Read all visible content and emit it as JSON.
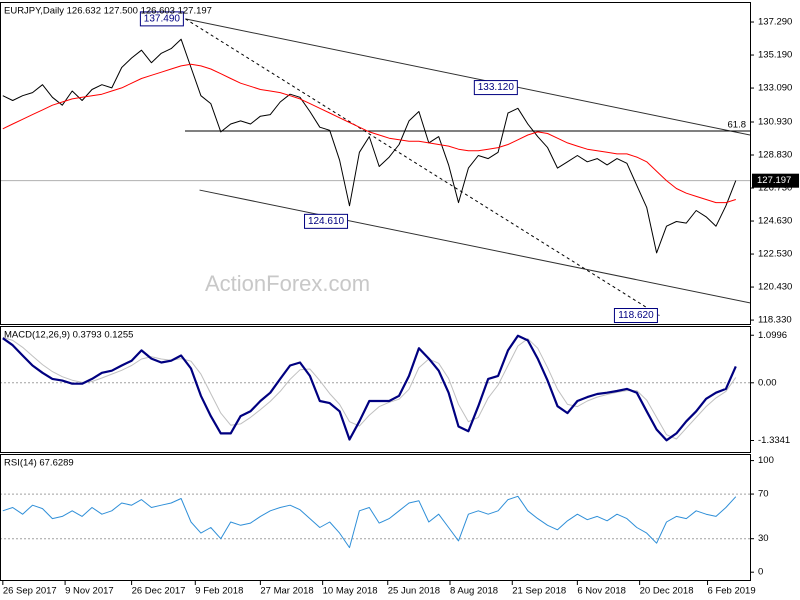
{
  "chart_data": [
    {
      "type": "line",
      "title": "EURJPY,Daily  126.632 127.500 126.603 127.197",
      "watermark": "ActionForex.com",
      "x": [
        "2017-09-26",
        "2017-10-03",
        "2017-10-10",
        "2017-10-17",
        "2017-10-24",
        "2017-10-31",
        "2017-11-07",
        "2017-11-14",
        "2017-11-21",
        "2017-11-28",
        "2017-12-05",
        "2017-12-12",
        "2017-12-19",
        "2017-12-26",
        "2018-01-02",
        "2018-01-09",
        "2018-01-16",
        "2018-01-23",
        "2018-01-30",
        "2018-02-06",
        "2018-02-13",
        "2018-02-20",
        "2018-02-27",
        "2018-03-06",
        "2018-03-13",
        "2018-03-20",
        "2018-03-27",
        "2018-04-03",
        "2018-04-10",
        "2018-04-17",
        "2018-04-24",
        "2018-05-01",
        "2018-05-08",
        "2018-05-15",
        "2018-05-22",
        "2018-05-29",
        "2018-06-05",
        "2018-06-12",
        "2018-06-19",
        "2018-06-26",
        "2018-07-03",
        "2018-07-10",
        "2018-07-17",
        "2018-07-24",
        "2018-07-31",
        "2018-08-07",
        "2018-08-14",
        "2018-08-21",
        "2018-08-28",
        "2018-09-04",
        "2018-09-11",
        "2018-09-18",
        "2018-09-25",
        "2018-10-02",
        "2018-10-09",
        "2018-10-16",
        "2018-10-23",
        "2018-10-30",
        "2018-11-06",
        "2018-11-13",
        "2018-11-20",
        "2018-11-27",
        "2018-12-04",
        "2018-12-11",
        "2018-12-18",
        "2018-12-25",
        "2019-01-01",
        "2019-01-08",
        "2019-01-15",
        "2019-01-22",
        "2019-01-29",
        "2019-02-05",
        "2019-02-12",
        "2019-02-19",
        "2019-02-26"
      ],
      "series": [
        {
          "color": "#000000",
          "width": 1,
          "values": [
            132.6,
            132.3,
            132.6,
            132.8,
            133.3,
            132.5,
            132.0,
            132.9,
            132.3,
            133.0,
            133.3,
            133.1,
            134.4,
            135.0,
            135.5,
            134.7,
            135.3,
            135.6,
            136.2,
            134.4,
            132.6,
            132.1,
            130.3,
            130.8,
            131.0,
            130.8,
            131.3,
            131.4,
            132.2,
            132.7,
            132.5,
            131.6,
            130.6,
            130.4,
            128.5,
            125.6,
            129.0,
            130.0,
            128.1,
            128.7,
            129.5,
            131.0,
            131.6,
            129.6,
            130.0,
            128.2,
            125.8,
            128.0,
            128.8,
            128.6,
            129.0,
            131.5,
            131.8,
            130.8,
            130.0,
            129.3,
            128.0,
            128.4,
            128.8,
            128.4,
            128.6,
            128.2,
            128.6,
            128.3,
            126.9,
            125.5,
            122.6,
            124.3,
            124.6,
            124.5,
            125.3,
            124.9,
            124.3,
            125.6,
            127.2
          ]
        },
        {
          "color": "#ff0000",
          "width": 1,
          "values": [
            130.5,
            130.8,
            131.1,
            131.4,
            131.7,
            132.0,
            132.2,
            132.4,
            132.5,
            132.6,
            132.7,
            132.9,
            133.1,
            133.4,
            133.7,
            133.9,
            134.1,
            134.3,
            134.5,
            134.6,
            134.5,
            134.3,
            134.0,
            133.7,
            133.4,
            133.2,
            133.0,
            132.9,
            132.8,
            132.6,
            132.4,
            132.1,
            131.8,
            131.5,
            131.2,
            130.9,
            130.6,
            130.3,
            130.1,
            129.9,
            129.8,
            129.7,
            129.7,
            129.6,
            129.5,
            129.4,
            129.2,
            129.1,
            129.1,
            129.2,
            129.3,
            129.5,
            129.8,
            130.1,
            130.3,
            130.2,
            129.9,
            129.6,
            129.4,
            129.2,
            129.1,
            129.0,
            128.9,
            128.9,
            128.7,
            128.4,
            127.8,
            127.2,
            126.7,
            126.4,
            126.2,
            126.0,
            125.8,
            125.8,
            126.0
          ]
        }
      ],
      "xlim": [
        "2017-09-24",
        "2019-03-08"
      ],
      "ylim": [
        118.08,
        138.5
      ],
      "yticks": [
        {
          "value": 137.29,
          "label": "137.290"
        },
        {
          "value": 135.19,
          "label": "135.190"
        },
        {
          "value": 133.09,
          "label": "133.090"
        },
        {
          "value": 130.93,
          "label": "130.930"
        },
        {
          "value": 128.83,
          "label": "128.830"
        },
        {
          "value": 126.73,
          "label": "126.730"
        },
        {
          "value": 124.63,
          "label": "124.630"
        },
        {
          "value": 122.53,
          "label": "122.530"
        },
        {
          "value": 120.43,
          "label": "120.430"
        },
        {
          "value": 118.33,
          "label": "118.330"
        }
      ],
      "annotations": [
        {
          "x": "2018-02-02",
          "value": 137.49,
          "label": "137.490"
        },
        {
          "x": "2018-09-26",
          "value": 133.12,
          "label": "133.120"
        },
        {
          "x": "2018-05-29",
          "value": 124.61,
          "label": "124.610"
        },
        {
          "x": "2019-01-03",
          "value": 118.62,
          "label": "118.620"
        }
      ],
      "trendlines": [
        {
          "x": [
            "2018-02-02",
            "2019-03-08"
          ],
          "values": [
            137.49,
            130.1
          ],
          "color": "#303030",
          "dashed": false
        },
        {
          "x": [
            "2018-02-12",
            "2019-03-08"
          ],
          "values": [
            126.6,
            119.42
          ],
          "color": "#303030",
          "dashed": false
        },
        {
          "x": [
            "2018-02-02",
            "2019-01-03"
          ],
          "values": [
            137.49,
            118.62
          ],
          "color": "#000000",
          "dashed": true
        }
      ],
      "fibo": {
        "value": 130.36,
        "label": "61.8"
      },
      "last_price": 127.197
    },
    {
      "type": "line",
      "title": "MACD(12,26,9) 0.3793 0.1255",
      "x": [
        "2017-09-26",
        "2017-10-03",
        "2017-10-10",
        "2017-10-17",
        "2017-10-24",
        "2017-10-31",
        "2017-11-07",
        "2017-11-14",
        "2017-11-21",
        "2017-11-28",
        "2017-12-05",
        "2017-12-12",
        "2017-12-19",
        "2017-12-26",
        "2018-01-02",
        "2018-01-09",
        "2018-01-16",
        "2018-01-23",
        "2018-01-30",
        "2018-02-06",
        "2018-02-13",
        "2018-02-20",
        "2018-02-27",
        "2018-03-06",
        "2018-03-13",
        "2018-03-20",
        "2018-03-27",
        "2018-04-03",
        "2018-04-10",
        "2018-04-17",
        "2018-04-24",
        "2018-05-01",
        "2018-05-08",
        "2018-05-15",
        "2018-05-22",
        "2018-05-29",
        "2018-06-05",
        "2018-06-12",
        "2018-06-19",
        "2018-06-26",
        "2018-07-03",
        "2018-07-10",
        "2018-07-17",
        "2018-07-24",
        "2018-07-31",
        "2018-08-07",
        "2018-08-14",
        "2018-08-21",
        "2018-08-28",
        "2018-09-04",
        "2018-09-11",
        "2018-09-18",
        "2018-09-25",
        "2018-10-02",
        "2018-10-09",
        "2018-10-16",
        "2018-10-23",
        "2018-10-30",
        "2018-11-06",
        "2018-11-13",
        "2018-11-20",
        "2018-11-27",
        "2018-12-04",
        "2018-12-11",
        "2018-12-18",
        "2018-12-25",
        "2019-01-01",
        "2019-01-08",
        "2019-01-15",
        "2019-01-22",
        "2019-01-29",
        "2019-02-05",
        "2019-02-12",
        "2019-02-19",
        "2019-02-26"
      ],
      "series": [
        {
          "color": "#c0c0c0",
          "width": 1,
          "values": [
            1.05,
            0.98,
            0.82,
            0.62,
            0.42,
            0.26,
            0.14,
            0.06,
            0.01,
            0.03,
            0.11,
            0.2,
            0.29,
            0.4,
            0.55,
            0.6,
            0.55,
            0.52,
            0.56,
            0.5,
            0.2,
            -0.25,
            -0.7,
            -0.98,
            -0.95,
            -0.8,
            -0.62,
            -0.43,
            -0.2,
            0.08,
            0.3,
            0.32,
            0.05,
            -0.25,
            -0.5,
            -0.9,
            -1.0,
            -0.75,
            -0.55,
            -0.45,
            -0.38,
            -0.15,
            0.35,
            0.55,
            0.45,
            0.1,
            -0.5,
            -0.9,
            -0.8,
            -0.35,
            -0.05,
            0.4,
            0.85,
            1.02,
            0.8,
            0.35,
            -0.15,
            -0.5,
            -0.55,
            -0.42,
            -0.33,
            -0.27,
            -0.22,
            -0.18,
            -0.18,
            -0.4,
            -0.8,
            -1.2,
            -1.3,
            -1.05,
            -0.8,
            -0.55,
            -0.35,
            -0.2,
            0.1255
          ]
        },
        {
          "color": "#000080",
          "width": 2.2,
          "values": [
            1.03,
            0.87,
            0.63,
            0.4,
            0.23,
            0.09,
            0.05,
            -0.02,
            -0.02,
            0.09,
            0.23,
            0.28,
            0.4,
            0.51,
            0.75,
            0.56,
            0.47,
            0.51,
            0.63,
            0.33,
            -0.3,
            -0.77,
            -1.17,
            -1.17,
            -0.77,
            -0.66,
            -0.42,
            -0.23,
            0.09,
            0.4,
            0.47,
            0.16,
            -0.42,
            -0.47,
            -0.66,
            -1.31,
            -0.89,
            -0.42,
            -0.42,
            -0.42,
            -0.3,
            0.16,
            0.8,
            0.56,
            0.28,
            -0.23,
            -1.01,
            -1.12,
            -0.54,
            0.09,
            0.16,
            0.75,
            1.09,
            0.98,
            0.56,
            0.05,
            -0.54,
            -0.7,
            -0.42,
            -0.33,
            -0.26,
            -0.23,
            -0.19,
            -0.14,
            -0.23,
            -0.66,
            -1.08,
            -1.33,
            -1.17,
            -0.89,
            -0.66,
            -0.37,
            -0.23,
            -0.14,
            0.3793
          ]
        }
      ],
      "xlim": [
        "2017-09-24",
        "2019-03-08"
      ],
      "ylim": [
        -1.6,
        1.29
      ],
      "yticks": [
        1.0996,
        {
          "value": 0,
          "label": "0.00"
        },
        -1.3341
      ],
      "levels": [
        0
      ]
    },
    {
      "type": "line",
      "title": "RSI(14) 67.6289",
      "x": [
        "2017-09-26",
        "2017-10-03",
        "2017-10-10",
        "2017-10-17",
        "2017-10-24",
        "2017-10-31",
        "2017-11-07",
        "2017-11-14",
        "2017-11-21",
        "2017-11-28",
        "2017-12-05",
        "2017-12-12",
        "2017-12-19",
        "2017-12-26",
        "2018-01-02",
        "2018-01-09",
        "2018-01-16",
        "2018-01-23",
        "2018-01-30",
        "2018-02-06",
        "2018-02-13",
        "2018-02-20",
        "2018-02-27",
        "2018-03-06",
        "2018-03-13",
        "2018-03-20",
        "2018-03-27",
        "2018-04-03",
        "2018-04-10",
        "2018-04-17",
        "2018-04-24",
        "2018-05-01",
        "2018-05-08",
        "2018-05-15",
        "2018-05-22",
        "2018-05-29",
        "2018-06-05",
        "2018-06-12",
        "2018-06-19",
        "2018-06-26",
        "2018-07-03",
        "2018-07-10",
        "2018-07-17",
        "2018-07-24",
        "2018-07-31",
        "2018-08-07",
        "2018-08-14",
        "2018-08-21",
        "2018-08-28",
        "2018-09-04",
        "2018-09-11",
        "2018-09-18",
        "2018-09-25",
        "2018-10-02",
        "2018-10-09",
        "2018-10-16",
        "2018-10-23",
        "2018-10-30",
        "2018-11-06",
        "2018-11-13",
        "2018-11-20",
        "2018-11-27",
        "2018-12-04",
        "2018-12-11",
        "2018-12-18",
        "2018-12-25",
        "2019-01-01",
        "2019-01-08",
        "2019-01-15",
        "2019-01-22",
        "2019-01-29",
        "2019-02-05",
        "2019-02-12",
        "2019-02-19",
        "2019-02-26"
      ],
      "series": [
        {
          "color": "#2f8fd8",
          "width": 1,
          "values": [
            55,
            58,
            52,
            60,
            57,
            48,
            50,
            55,
            50,
            58,
            52,
            55,
            62,
            60,
            65,
            58,
            60,
            62,
            66,
            45,
            35,
            40,
            30,
            45,
            42,
            44,
            50,
            55,
            58,
            60,
            56,
            48,
            40,
            45,
            35,
            22,
            55,
            58,
            44,
            48,
            55,
            62,
            64,
            45,
            52,
            40,
            28,
            52,
            55,
            52,
            55,
            65,
            68,
            55,
            48,
            42,
            38,
            46,
            52,
            47,
            50,
            46,
            52,
            48,
            40,
            35,
            26,
            45,
            50,
            48,
            55,
            52,
            50,
            58,
            67.6289
          ]
        }
      ],
      "xlim": [
        "2017-09-24",
        "2019-03-08"
      ],
      "ylim": [
        -7,
        105
      ],
      "yticks": [
        100,
        70,
        30,
        0
      ],
      "levels": [
        70,
        30
      ],
      "xticks": [
        {
          "value": "2017-09-26",
          "label": "26 Sep 2017"
        },
        {
          "value": "2017-11-09",
          "label": "9 Nov 2017"
        },
        {
          "value": "2017-12-26",
          "label": "26 Dec 2017"
        },
        {
          "value": "2018-02-09",
          "label": "9 Feb 2018"
        },
        {
          "value": "2018-03-27",
          "label": "27 Mar 2018"
        },
        {
          "value": "2018-05-10",
          "label": "10 May 2018"
        },
        {
          "value": "2018-06-25",
          "label": "25 Jun 2018"
        },
        {
          "value": "2018-08-08",
          "label": "8 Aug 2018"
        },
        {
          "value": "2018-09-21",
          "label": "21 Sep 2018"
        },
        {
          "value": "2018-11-06",
          "label": "6 Nov 2018"
        },
        {
          "value": "2018-12-20",
          "label": "20 Dec 2018"
        },
        {
          "value": "2019-02-06",
          "label": "6 Feb 2019"
        }
      ]
    }
  ]
}
